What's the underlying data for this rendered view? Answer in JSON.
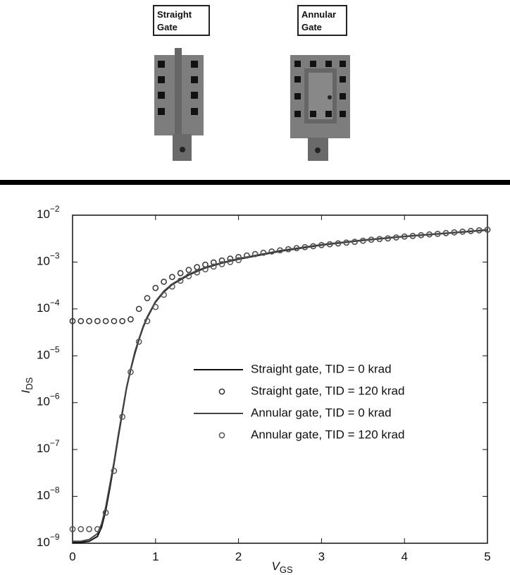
{
  "layout_labels": {
    "straight": [
      "Straight",
      "Gate"
    ],
    "annular": [
      "Annular",
      "Gate"
    ]
  },
  "chart_data": {
    "type": "line",
    "xlabel": "VGS",
    "ylabel": "IDS",
    "xlim": [
      0,
      5
    ],
    "xticks": [
      0,
      1,
      2,
      3,
      4,
      5
    ],
    "ylim": [
      1e-09,
      0.01
    ],
    "log_y": true,
    "yticks": [
      {
        "value": 1e-09,
        "label": "10−9"
      },
      {
        "value": 1e-08,
        "label": "10−8"
      },
      {
        "value": 1e-07,
        "label": "10−7"
      },
      {
        "value": 1e-06,
        "label": "10−6"
      },
      {
        "value": 1e-05,
        "label": "10−5"
      },
      {
        "value": 0.0001,
        "label": "10−4"
      },
      {
        "value": 0.001,
        "label": "10−3"
      },
      {
        "value": 0.01,
        "label": "10−2"
      }
    ],
    "legend": "lower right",
    "series": [
      {
        "name": "Straight gate, TID = 0 krad",
        "style": "line",
        "color": "#111111",
        "x": [
          0,
          0.1,
          0.2,
          0.3,
          0.35,
          0.4,
          0.45,
          0.5,
          0.55,
          0.6,
          0.65,
          0.7,
          0.75,
          0.8,
          0.85,
          0.9,
          1,
          1.1,
          1.2,
          1.4,
          1.6,
          1.8,
          2,
          2.5,
          3,
          3.5,
          4,
          4.5,
          5
        ],
        "values": [
          1.05e-09,
          1.05e-09,
          1.1e-09,
          1.4e-09,
          2.2e-09,
          5e-09,
          1.5e-08,
          5e-08,
          1.8e-07,
          6e-07,
          2e-06,
          5e-06,
          1.1e-05,
          2.2e-05,
          4e-05,
          6.5e-05,
          0.00014,
          0.00023,
          0.00033,
          0.00053,
          0.00075,
          0.00095,
          0.00115,
          0.0017,
          0.0023,
          0.0029,
          0.0035,
          0.0041,
          0.0048
        ]
      },
      {
        "name": "Straight gate, TID = 120 krad",
        "style": "circle",
        "color": "#333333",
        "x": [
          0,
          0.1,
          0.2,
          0.3,
          0.4,
          0.5,
          0.6,
          0.7,
          0.8,
          0.9,
          1,
          1.1,
          1.2,
          1.3,
          1.4,
          1.5,
          1.6,
          1.7,
          1.8,
          1.9,
          2,
          2.1,
          2.2,
          2.3,
          2.4,
          2.5,
          2.6,
          2.7,
          2.8,
          2.9,
          3,
          3.1,
          3.2,
          3.3,
          3.4,
          3.5,
          3.6,
          3.7,
          3.8,
          3.9,
          4,
          4.1,
          4.2,
          4.3,
          4.4,
          4.5,
          4.6,
          4.7,
          4.8,
          4.9,
          5
        ],
        "values": [
          5.5e-05,
          5.5e-05,
          5.5e-05,
          5.5e-05,
          5.5e-05,
          5.5e-05,
          5.5e-05,
          6e-05,
          0.0001,
          0.00017,
          0.00028,
          0.00038,
          0.00048,
          0.00058,
          0.00068,
          0.00078,
          0.00088,
          0.00098,
          0.00108,
          0.00118,
          0.00128,
          0.00138,
          0.00148,
          0.00158,
          0.00168,
          0.00178,
          0.00188,
          0.00198,
          0.00208,
          0.00218,
          0.0023,
          0.0024,
          0.0025,
          0.0026,
          0.0027,
          0.00285,
          0.003,
          0.0031,
          0.0032,
          0.00335,
          0.0035,
          0.0036,
          0.00375,
          0.0039,
          0.004,
          0.00415,
          0.0043,
          0.00445,
          0.0046,
          0.00475,
          0.0049
        ]
      },
      {
        "name": "Annular gate, TID = 0 krad",
        "style": "line",
        "color": "#444444",
        "x": [
          0,
          0.1,
          0.2,
          0.3,
          0.35,
          0.4,
          0.45,
          0.5,
          0.55,
          0.6,
          0.65,
          0.7,
          0.75,
          0.8,
          0.85,
          0.9,
          1,
          1.1,
          1.2,
          1.4,
          1.6,
          1.8,
          2,
          2.5,
          3,
          3.5,
          4,
          4.5,
          5
        ],
        "values": [
          1.1e-09,
          1.1e-09,
          1.2e-09,
          1.6e-09,
          2.6e-09,
          6e-09,
          1.8e-08,
          5.5e-08,
          2e-07,
          6.5e-07,
          2.1e-06,
          5.2e-06,
          1.2e-05,
          2.3e-05,
          4.2e-05,
          6.8e-05,
          0.000145,
          0.00024,
          0.00034,
          0.00055,
          0.00077,
          0.00097,
          0.00118,
          0.00175,
          0.00235,
          0.00295,
          0.00355,
          0.00415,
          0.0049
        ]
      },
      {
        "name": "Annular gate, TID = 120 krad",
        "style": "circle",
        "color": "#555555",
        "x": [
          0,
          0.1,
          0.2,
          0.3,
          0.4,
          0.5,
          0.6,
          0.7,
          0.8,
          0.9,
          1,
          1.1,
          1.2,
          1.3,
          1.4,
          1.5,
          1.6,
          1.7,
          1.8,
          1.9,
          2,
          2.1,
          2.2,
          2.3,
          2.4,
          2.5,
          2.6,
          2.7,
          2.8,
          2.9,
          3,
          3.1,
          3.2,
          3.3,
          3.4,
          3.5,
          3.6,
          3.7,
          3.8,
          3.9,
          4,
          4.1,
          4.2,
          4.3,
          4.4,
          4.5,
          4.6,
          4.7,
          4.8,
          4.9,
          5
        ],
        "values": [
          2e-09,
          2e-09,
          2e-09,
          2e-09,
          4.5e-09,
          3.5e-08,
          5e-07,
          4.5e-06,
          2e-05,
          5.5e-05,
          0.00011,
          0.0002,
          0.0003,
          0.0004,
          0.0005,
          0.0006,
          0.0007,
          0.0008,
          0.0009,
          0.001,
          0.0011,
          0.00138,
          0.00148,
          0.00158,
          0.00168,
          0.00178,
          0.00188,
          0.00198,
          0.00208,
          0.00218,
          0.0023,
          0.0024,
          0.0025,
          0.0026,
          0.0027,
          0.00285,
          0.003,
          0.0031,
          0.0032,
          0.00335,
          0.0035,
          0.0036,
          0.00375,
          0.0039,
          0.004,
          0.00415,
          0.0043,
          0.00445,
          0.0046,
          0.00475,
          0.0049
        ]
      }
    ]
  }
}
